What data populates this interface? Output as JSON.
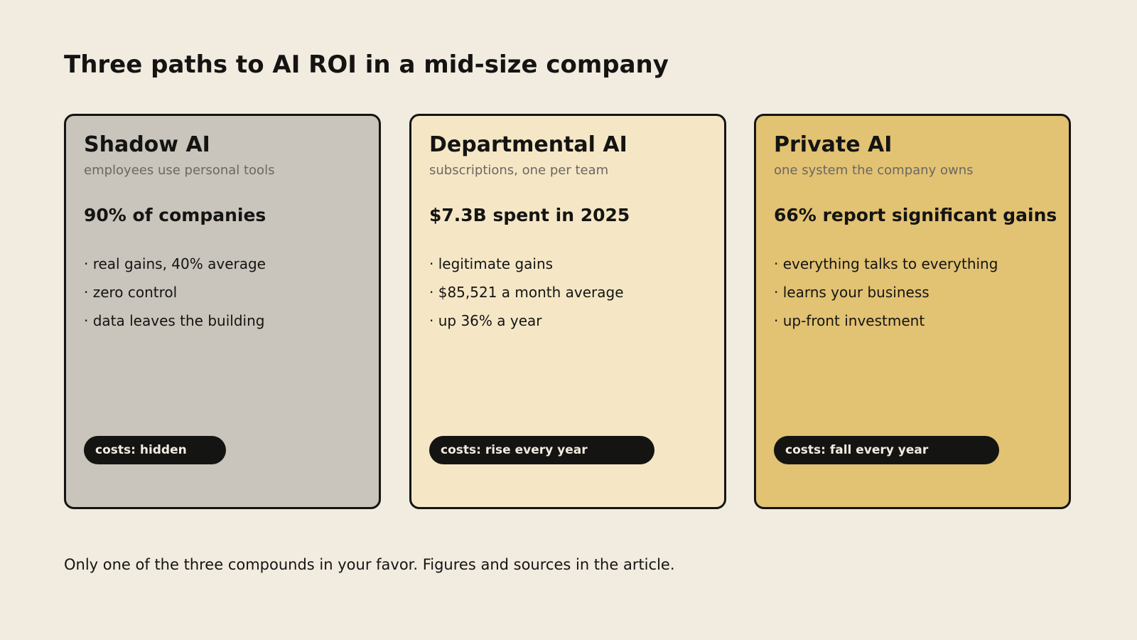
{
  "title": "Three paths to AI ROI in a mid-size company",
  "cards": [
    {
      "title": "Shadow AI",
      "subtitle": "employees use personal tools",
      "stat": "90% of companies",
      "points": [
        "· real gains, 40% average",
        "· zero control",
        "· data leaves the building"
      ],
      "badge": "costs: hidden",
      "color": "#c9c4bc"
    },
    {
      "title": "Departmental AI",
      "subtitle": "subscriptions, one per team",
      "stat": "$7.3B spent in 2025",
      "points": [
        "· legitimate gains",
        "· $85,521 a month average",
        "· up 36% a year"
      ],
      "badge": "costs: rise every year",
      "color": "#f5e7c6"
    },
    {
      "title": "Private AI",
      "subtitle": "one system the company owns",
      "stat": "66% report significant gains",
      "points": [
        "· everything talks to everything",
        "· learns your business",
        "· up-front investment"
      ],
      "badge": "costs: fall every year",
      "color": "#e2c273"
    }
  ],
  "footnote": "Only one of the three compounds in your favor. Figures and sources in the article."
}
